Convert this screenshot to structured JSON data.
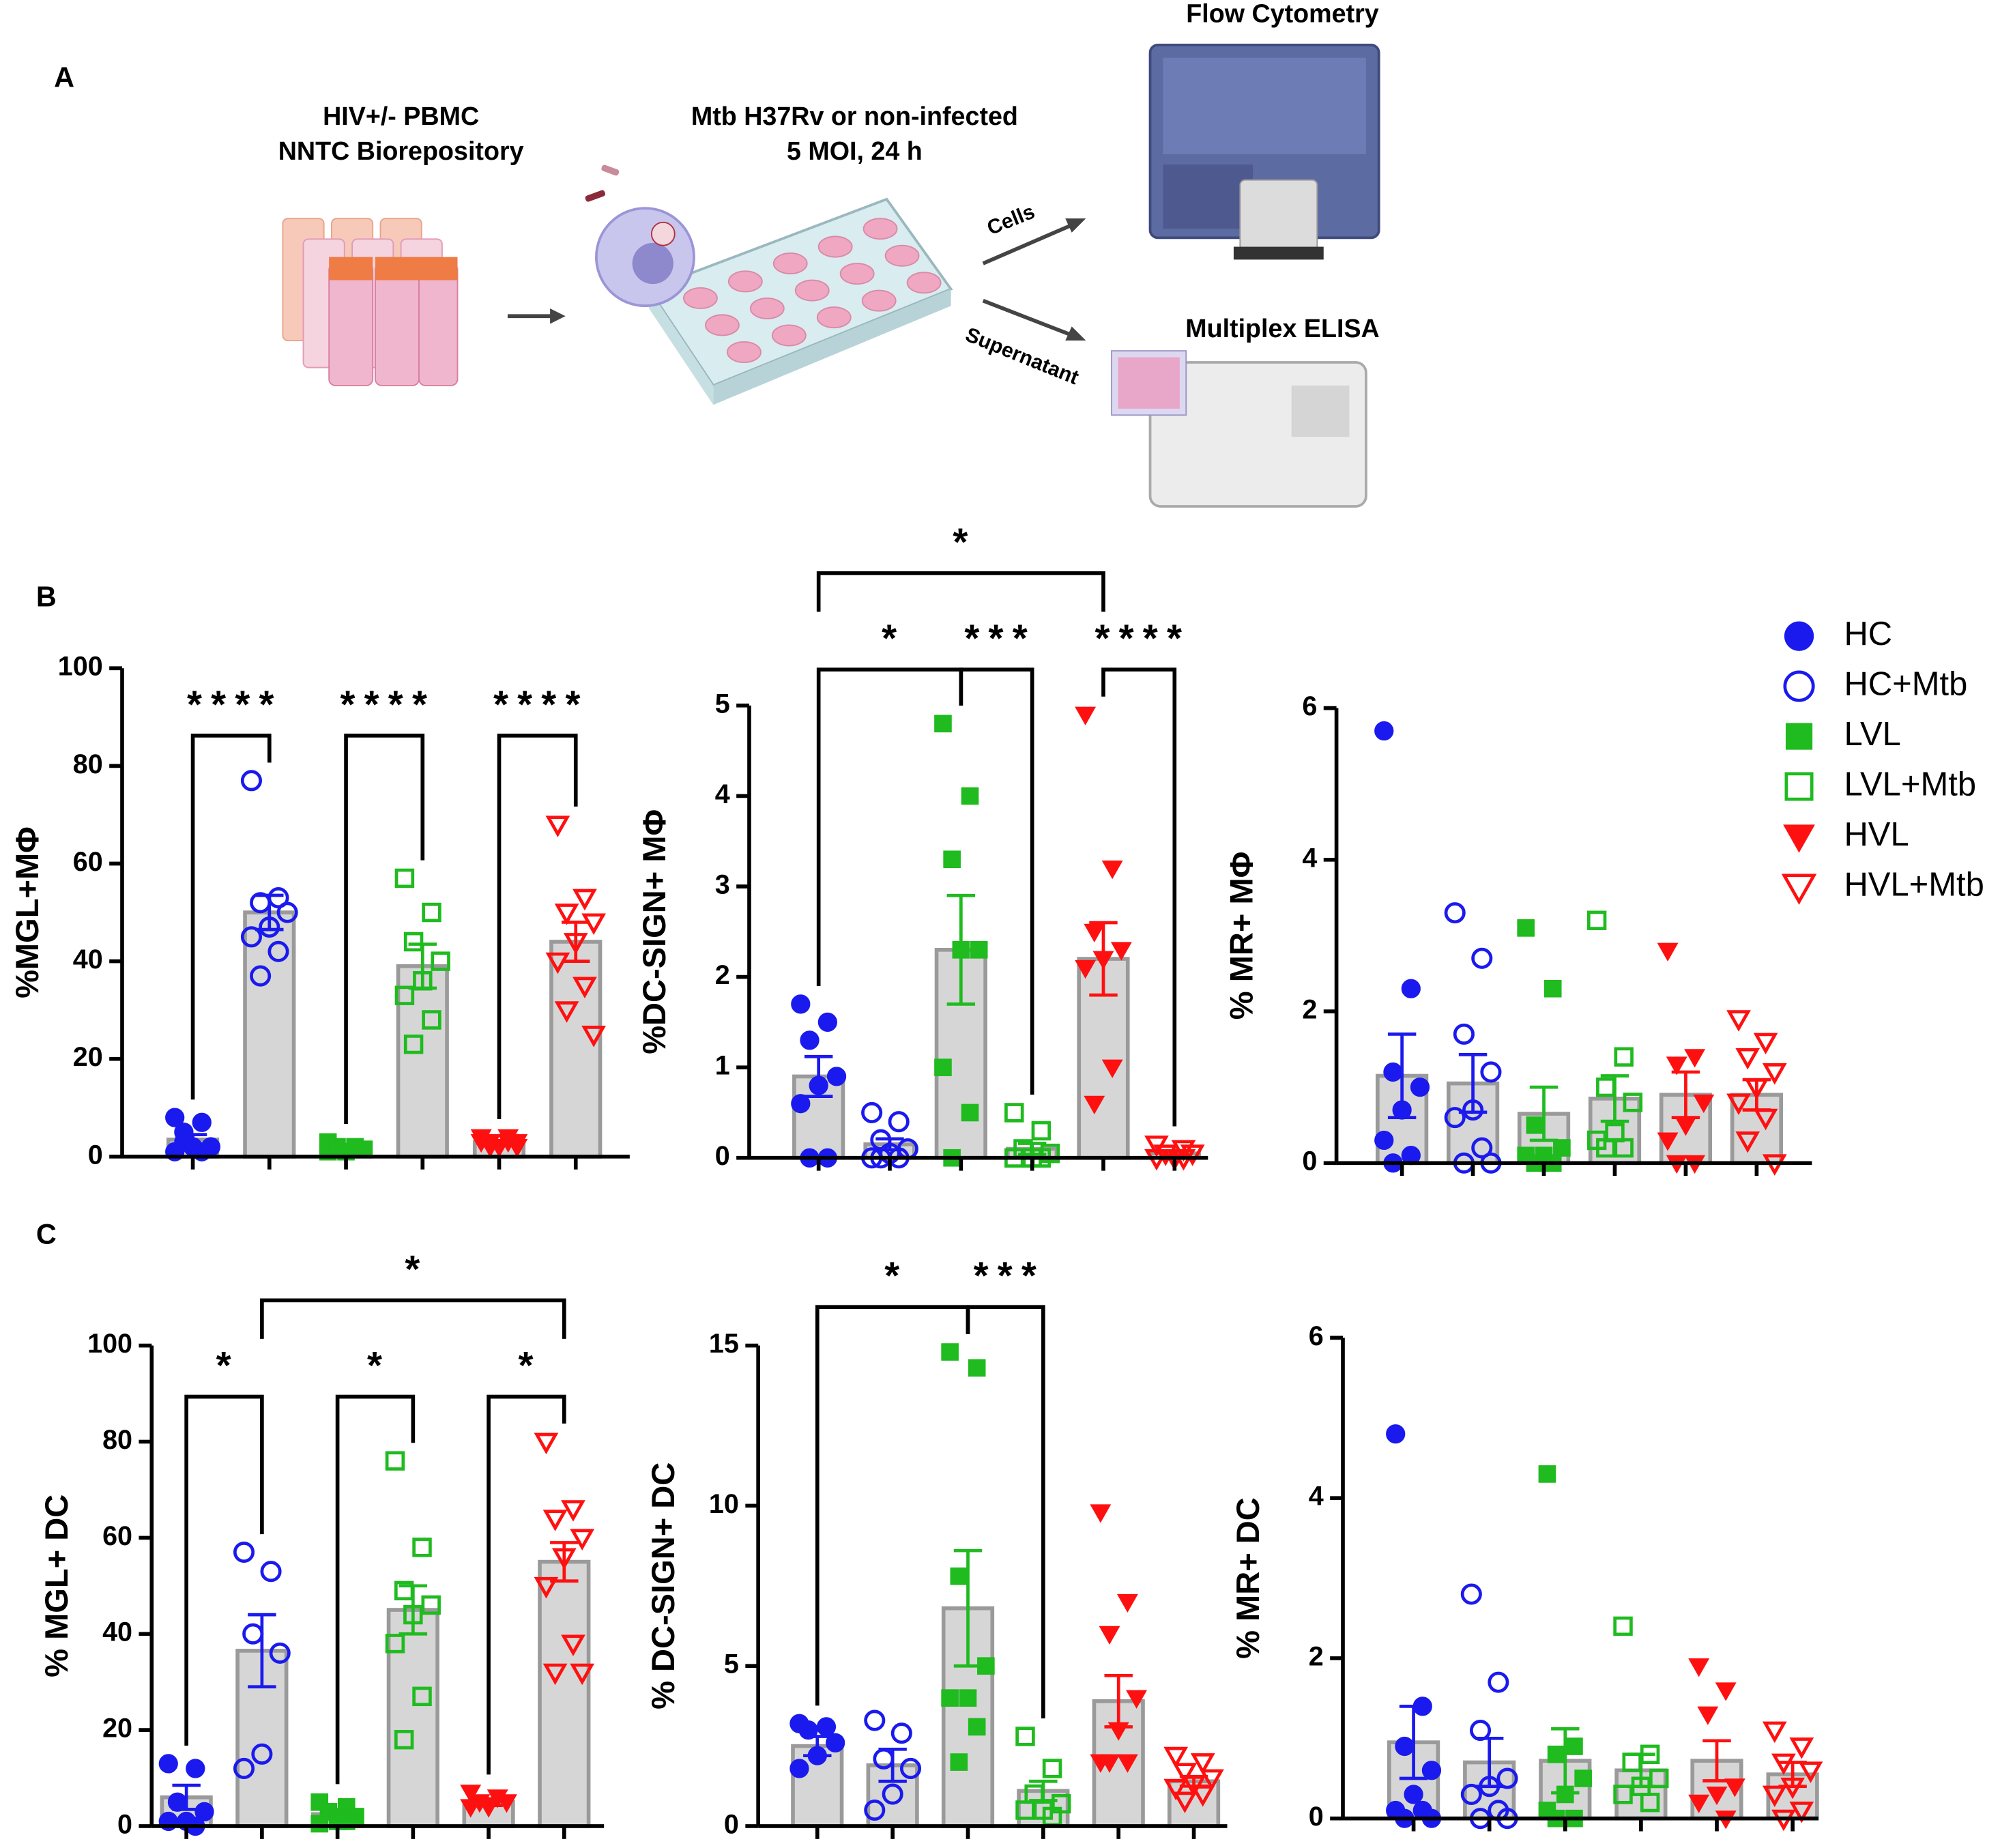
{
  "panels": {
    "a": "A",
    "b": "B",
    "c": "C"
  },
  "diagram": {
    "source_line1": "HIV+/- PBMC",
    "source_line2": "NNTC Biorepository",
    "infection_line1": "Mtb H37Rv or non-infected",
    "infection_line2": "5 MOI, 24 h",
    "arrow_top": "Cells",
    "arrow_bottom": "Supernatant",
    "instrument_top": "Flow Cytometry",
    "instrument_bottom": "Multiplex ELISA"
  },
  "legend": {
    "items": [
      {
        "name": "HC",
        "color": "#1a1aee",
        "marker": "circle",
        "filled": true
      },
      {
        "name": "HC+Mtb",
        "color": "#1a1aee",
        "marker": "circle",
        "filled": false
      },
      {
        "name": "LVL",
        "color": "#1fbb1f",
        "marker": "square",
        "filled": true
      },
      {
        "name": "LVL+Mtb",
        "color": "#1fbb1f",
        "marker": "square",
        "filled": false
      },
      {
        "name": "HVL",
        "color": "#ff1010",
        "marker": "triangle",
        "filled": true
      },
      {
        "name": "HVL+Mtb",
        "color": "#ff1010",
        "marker": "triangle",
        "filled": false
      }
    ]
  },
  "chart_data": [
    {
      "type": "bar",
      "ylabel": "%MGL+MΦ",
      "ylim": [
        0,
        100
      ],
      "yticks": [
        0,
        20,
        40,
        60,
        80,
        100
      ],
      "categories": [
        null,
        null,
        null,
        null,
        null,
        null
      ],
      "values": [
        3.5,
        50,
        2,
        39,
        3,
        44
      ],
      "errors": [
        1,
        3.5,
        0.3,
        4.5,
        0.3,
        4
      ],
      "points": [
        [
          8,
          7,
          3,
          2,
          2,
          1,
          1,
          5
        ],
        [
          77,
          53,
          52,
          50,
          47,
          45,
          42,
          37
        ],
        [
          3,
          2,
          2,
          1.5,
          1,
          1,
          2,
          2
        ],
        [
          57,
          50,
          44,
          40,
          36,
          33,
          28,
          23
        ],
        [
          4,
          3,
          3,
          2,
          2,
          3,
          4,
          2,
          3
        ],
        [
          68,
          53,
          50,
          48,
          44,
          40,
          35,
          30,
          25
        ]
      ],
      "annotations": [
        {
          "from": 0,
          "to": 1,
          "label": "****"
        },
        {
          "from": 2,
          "to": 3,
          "label": "****"
        },
        {
          "from": 4,
          "to": 5,
          "label": "****"
        }
      ]
    },
    {
      "type": "bar",
      "ylabel": "%DC-SIGN+ MΦ",
      "ylim": [
        0,
        5
      ],
      "yticks": [
        0,
        1,
        2,
        3,
        4,
        5
      ],
      "categories": [
        null,
        null,
        null,
        null,
        null,
        null
      ],
      "values": [
        0.9,
        0.15,
        2.3,
        0.1,
        2.2,
        0.05
      ],
      "errors": [
        0.22,
        0.06,
        0.6,
        0.06,
        0.4,
        0.02
      ],
      "points": [
        [
          1.7,
          1.5,
          1.3,
          0.9,
          0.8,
          0.6,
          0,
          0
        ],
        [
          0.5,
          0.4,
          0.2,
          0.1,
          0.05,
          0,
          0,
          0
        ],
        [
          4.8,
          4.0,
          3.3,
          2.3,
          2.3,
          1.0,
          0.5,
          0
        ],
        [
          0.5,
          0.3,
          0.1,
          0.05,
          0,
          0,
          0
        ],
        [
          4.9,
          3.2,
          2.5,
          2.3,
          2.2,
          2.1,
          1.0,
          0.6
        ],
        [
          0.15,
          0.1,
          0.05,
          0.05,
          0,
          0,
          0
        ]
      ],
      "annotations": [
        {
          "from": 0,
          "to": 2,
          "label": "*"
        },
        {
          "from": 2,
          "to": 3,
          "label": "***"
        },
        {
          "from": 4,
          "to": 5,
          "label": "****"
        },
        {
          "from": 0,
          "to": 4,
          "label": "*"
        }
      ]
    },
    {
      "type": "bar",
      "ylabel": "% MR+ MΦ",
      "ylim": [
        0,
        6
      ],
      "yticks": [
        0,
        2,
        4,
        6
      ],
      "categories": [
        null,
        null,
        null,
        null,
        null,
        null
      ],
      "values": [
        1.15,
        1.05,
        0.65,
        0.85,
        0.9,
        0.9
      ],
      "errors": [
        0.55,
        0.38,
        0.35,
        0.3,
        0.3,
        0.2
      ],
      "points": [
        [
          5.7,
          2.3,
          1.2,
          1.0,
          0.7,
          0.3,
          0.1,
          0
        ],
        [
          3.3,
          2.7,
          1.7,
          1.2,
          0.7,
          0.6,
          0.2,
          0,
          0
        ],
        [
          3.1,
          2.3,
          0.5,
          0.2,
          0.1,
          0.1,
          0,
          0
        ],
        [
          3.2,
          1.4,
          1.0,
          0.8,
          0.4,
          0.3,
          0.2,
          0.2
        ],
        [
          2.8,
          1.4,
          1.3,
          0.8,
          0.5,
          0.3,
          0,
          0
        ],
        [
          1.9,
          1.6,
          1.4,
          1.2,
          1.0,
          0.8,
          0.6,
          0.3,
          0
        ]
      ]
    },
    {
      "type": "bar",
      "ylabel": "% MGL+ DC",
      "ylim": [
        0,
        100
      ],
      "yticks": [
        0,
        20,
        40,
        60,
        80,
        100
      ],
      "categories": [
        null,
        null,
        null,
        null,
        null,
        null
      ],
      "values": [
        6,
        36.5,
        2.5,
        45,
        5,
        55
      ],
      "errors": [
        2.5,
        7.5,
        1,
        5,
        0.7,
        4
      ],
      "points": [
        [
          13,
          12,
          5,
          3,
          1,
          1,
          0
        ],
        [
          57,
          53,
          40,
          36,
          15,
          12
        ],
        [
          5,
          4,
          3,
          2,
          1,
          0.5,
          1
        ],
        [
          76,
          58,
          49,
          46,
          44,
          38,
          27,
          18
        ],
        [
          7,
          6,
          5,
          5,
          4,
          4
        ],
        [
          80,
          66,
          64,
          60,
          56,
          50,
          38,
          32,
          32
        ]
      ],
      "annotations": [
        {
          "from": 0,
          "to": 1,
          "label": "*"
        },
        {
          "from": 2,
          "to": 3,
          "label": "*"
        },
        {
          "from": 4,
          "to": 5,
          "label": "*"
        },
        {
          "from": 1,
          "to": 5,
          "label": "*"
        }
      ]
    },
    {
      "type": "bar",
      "ylabel": "% DC-SIGN+ DC",
      "ylim": [
        0,
        15
      ],
      "yticks": [
        0,
        5,
        10,
        15
      ],
      "categories": [
        null,
        null,
        null,
        null,
        null,
        null
      ],
      "values": [
        2.5,
        1.9,
        6.8,
        1.1,
        3.9,
        1.4
      ],
      "errors": [
        0.3,
        0.5,
        1.8,
        0.3,
        0.8,
        0.15
      ],
      "points": [
        [
          3.2,
          3.1,
          3.0,
          2.6,
          2.2,
          1.8
        ],
        [
          3.3,
          2.9,
          2.1,
          1.8,
          1.0,
          0.5
        ],
        [
          14.8,
          14.3,
          7.8,
          5.0,
          4.0,
          4.0,
          3.1,
          2.0
        ],
        [
          2.8,
          1.8,
          1.0,
          0.7,
          0.5,
          0.5,
          0.3
        ],
        [
          9.8,
          7.0,
          6.0,
          4.0,
          3.0,
          2.0,
          2.0,
          2.0
        ],
        [
          2.2,
          2.0,
          1.7,
          1.5,
          1.3,
          1.2,
          1.0,
          0.8
        ]
      ],
      "annotations": [
        {
          "from": 0,
          "to": 2,
          "label": "*"
        },
        {
          "from": 2,
          "to": 3,
          "label": "***"
        }
      ]
    },
    {
      "type": "bar",
      "ylabel": "% MR+ DC",
      "ylim": [
        0,
        6
      ],
      "yticks": [
        0,
        2,
        4,
        6
      ],
      "categories": [
        null,
        null,
        null,
        null,
        null,
        null
      ],
      "values": [
        0.95,
        0.7,
        0.72,
        0.6,
        0.72,
        0.55
      ],
      "errors": [
        0.45,
        0.3,
        0.4,
        0.2,
        0.25,
        0.15
      ],
      "points": [
        [
          4.8,
          1.4,
          0.9,
          0.6,
          0.3,
          0.1,
          0.1,
          0,
          0
        ],
        [
          2.8,
          1.7,
          1.1,
          0.5,
          0.4,
          0.3,
          0.1,
          0,
          0
        ],
        [
          4.3,
          0.9,
          0.8,
          0.5,
          0.3,
          0.1,
          0,
          0
        ],
        [
          2.4,
          0.8,
          0.7,
          0.5,
          0.4,
          0.3,
          0.2
        ],
        [
          1.9,
          1.6,
          1.3,
          0.4,
          0.3,
          0.2,
          0
        ],
        [
          1.1,
          0.9,
          0.7,
          0.6,
          0.4,
          0.3,
          0.1,
          0
        ]
      ]
    }
  ]
}
